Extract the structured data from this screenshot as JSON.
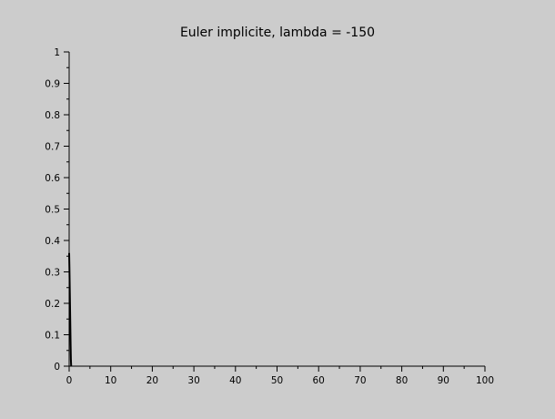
{
  "chart_data": {
    "type": "line",
    "title": "Euler implicite, lambda = -150",
    "xlabel": "",
    "ylabel": "",
    "xlim": [
      0,
      100
    ],
    "ylim": [
      0,
      1
    ],
    "grid": false,
    "x_ticks": [
      0,
      10,
      20,
      30,
      40,
      50,
      60,
      70,
      80,
      90,
      100
    ],
    "y_ticks": [
      0,
      0.1,
      0.2,
      0.3,
      0.4,
      0.5,
      0.6,
      0.7,
      0.8,
      0.9,
      1
    ],
    "x_tick_labels": [
      "0",
      "10",
      "20",
      "30",
      "40",
      "50",
      "60",
      "70",
      "80",
      "90",
      "100"
    ],
    "y_tick_labels": [
      "0",
      "0.1",
      "0.2",
      "0.3",
      "0.4",
      "0.5",
      "0.6",
      "0.7",
      "0.8",
      "0.9",
      "1"
    ],
    "series": [
      {
        "x": [
          0,
          0.07,
          0.14,
          0.21,
          0.28,
          0.35,
          0.42,
          0.49
        ],
        "y": [
          0.36,
          0.31,
          0.25,
          0.19,
          0.13,
          0.07,
          0.02,
          0.0
        ],
        "color": "#000000"
      }
    ]
  }
}
